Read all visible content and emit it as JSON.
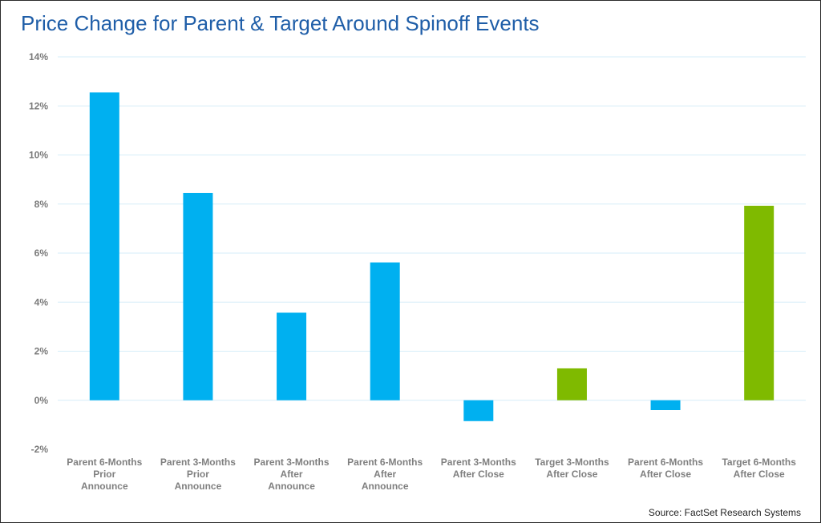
{
  "chart_data": {
    "type": "bar",
    "title": "Price Change for Parent & Target Around Spinoff Events",
    "xlabel": "",
    "ylabel": "",
    "ylim": [
      -2,
      14
    ],
    "yticks": [
      -2,
      0,
      2,
      4,
      6,
      8,
      10,
      12,
      14
    ],
    "ytick_labels": [
      "-2%",
      "0%",
      "2%",
      "4%",
      "6%",
      "8%",
      "10%",
      "12%",
      "14%"
    ],
    "grid": true,
    "legend": "none",
    "categories": [
      [
        "Parent 6-Months",
        "Prior",
        "Announce"
      ],
      [
        "Parent 3-Months",
        "Prior",
        "Announce"
      ],
      [
        "Parent 3-Months",
        "After",
        "Announce"
      ],
      [
        "Parent 6-Months",
        "After",
        "Announce"
      ],
      [
        "Parent 3-Months",
        "After Close"
      ],
      [
        "Target 3-Months",
        "After Close"
      ],
      [
        "Parent 6-Months",
        "After Close"
      ],
      [
        "Target 6-Months",
        "After Close"
      ]
    ],
    "values": [
      12.55,
      8.45,
      3.57,
      5.62,
      -0.85,
      1.3,
      -0.4,
      7.93
    ],
    "bar_colors": [
      "#00b0f0",
      "#00b0f0",
      "#00b0f0",
      "#00b0f0",
      "#00b0f0",
      "#7fba00",
      "#00b0f0",
      "#7fba00"
    ],
    "colors": {
      "parent": "#00b0f0",
      "target": "#7fba00",
      "title": "#1f5ea8",
      "grid": "#d6eef8"
    }
  },
  "source": "Source: FactSet Research Systems"
}
